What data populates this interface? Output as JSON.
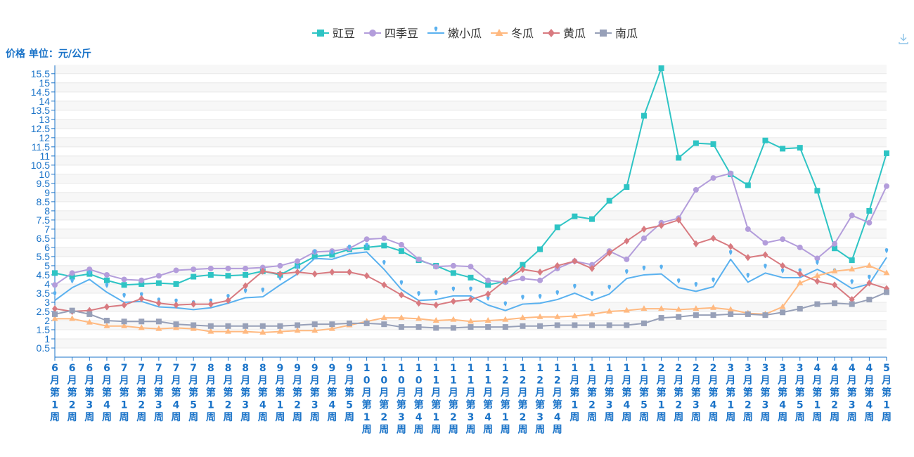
{
  "chart_data": {
    "type": "line",
    "ylabel": "价格 单位：元/公斤",
    "ylim": [
      0,
      15.8
    ],
    "yticks": [
      0.5,
      1,
      1.5,
      2,
      2.5,
      3,
      3.5,
      4,
      4.5,
      5,
      5.5,
      6,
      6.5,
      7,
      7.5,
      8,
      8.5,
      9,
      9.5,
      10,
      10.5,
      11,
      11.5,
      12,
      12.5,
      13,
      13.5,
      14,
      14.5,
      15,
      15.5
    ],
    "grid": true,
    "legend_position": "top-center",
    "categories": [
      "6月第1周",
      "6月第2周",
      "6月第3周",
      "6月第4周",
      "7月第1周",
      "7月第2周",
      "7月第3周",
      "7月第4周",
      "7月第5周",
      "8月第1周",
      "8月第2周",
      "8月第3周",
      "8月第4周",
      "9月第1周",
      "9月第2周",
      "9月第3周",
      "9月第4周",
      "9月第5周",
      "10月第1周",
      "10月第2周",
      "10月第3周",
      "10月第4周",
      "11月第1周",
      "11月第2周",
      "11月第3周",
      "11月第4周",
      "12月第1周",
      "12月第2周",
      "12月第3周",
      "12月第4周",
      "1月第1周",
      "1月第2周",
      "1月第3周",
      "1月第4周",
      "1月第5周",
      "2月第1周",
      "2月第2周",
      "2月第3周",
      "2月第4周",
      "3月第1周",
      "3月第2周",
      "3月第3周",
      "3月第4周",
      "3月第5周",
      "4月第1周",
      "4月第2周",
      "4月第3周",
      "4月第4周",
      "5月第1周"
    ],
    "series": [
      {
        "name": "豇豆",
        "color": "#2ec4c4",
        "marker": "square",
        "values": [
          4.6,
          4.4,
          4.55,
          4.2,
          3.95,
          4.0,
          4.05,
          4.0,
          4.4,
          4.5,
          4.45,
          4.5,
          4.7,
          4.5,
          5.0,
          5.5,
          5.6,
          5.9,
          6.0,
          6.1,
          5.8,
          5.3,
          5.0,
          4.6,
          4.35,
          3.95,
          4.15,
          5.05,
          5.9,
          7.1,
          7.7,
          7.55,
          8.55,
          9.3,
          13.2,
          15.8,
          10.9,
          11.7,
          11.65,
          10.0,
          9.4,
          11.85,
          11.4,
          11.45,
          9.1,
          5.95,
          5.3,
          8.0,
          11.15
        ]
      },
      {
        "name": "四季豆",
        "color": "#b39ddb",
        "marker": "circle",
        "values": [
          3.95,
          4.6,
          4.8,
          4.5,
          4.25,
          4.2,
          4.45,
          4.75,
          4.8,
          4.85,
          4.85,
          4.85,
          4.9,
          5.0,
          5.25,
          5.75,
          5.8,
          5.95,
          6.45,
          6.5,
          6.15,
          5.35,
          4.95,
          5.0,
          4.95,
          4.2,
          4.1,
          4.3,
          4.2,
          4.85,
          5.25,
          5.05,
          5.8,
          5.35,
          6.5,
          7.35,
          7.6,
          9.15,
          9.8,
          10.05,
          7.0,
          6.25,
          6.45,
          6.0,
          5.4,
          6.2,
          7.75,
          7.35,
          9.35
        ]
      },
      {
        "name": "嫩小瓜",
        "color": "#5ab1ef",
        "marker": "pin",
        "values": [
          3.1,
          3.8,
          4.25,
          3.55,
          3.0,
          3.05,
          2.75,
          2.7,
          2.6,
          2.7,
          2.95,
          3.25,
          3.3,
          3.95,
          4.55,
          5.4,
          5.35,
          5.65,
          5.75,
          4.8,
          3.7,
          3.1,
          3.15,
          3.35,
          3.35,
          2.85,
          2.55,
          2.9,
          2.95,
          3.15,
          3.5,
          3.1,
          3.45,
          4.3,
          4.5,
          4.55,
          3.8,
          3.6,
          3.85,
          5.35,
          4.1,
          4.6,
          4.35,
          4.35,
          4.8,
          4.35,
          3.75,
          4.0,
          5.45
        ]
      },
      {
        "name": "冬瓜",
        "color": "#ffb980",
        "marker": "triangle",
        "values": [
          2.1,
          2.1,
          1.9,
          1.7,
          1.7,
          1.6,
          1.55,
          1.6,
          1.55,
          1.4,
          1.4,
          1.4,
          1.35,
          1.4,
          1.45,
          1.45,
          1.55,
          1.75,
          1.95,
          2.15,
          2.15,
          2.1,
          2.0,
          2.05,
          1.95,
          2.0,
          2.05,
          2.15,
          2.2,
          2.2,
          2.25,
          2.35,
          2.5,
          2.55,
          2.65,
          2.65,
          2.6,
          2.65,
          2.7,
          2.6,
          2.4,
          2.35,
          2.75,
          4.05,
          4.45,
          4.7,
          4.8,
          5.0,
          4.6
        ]
      },
      {
        "name": "黄瓜",
        "color": "#d87a80",
        "marker": "diamond",
        "values": [
          2.65,
          2.5,
          2.55,
          2.75,
          2.85,
          3.2,
          2.95,
          2.85,
          2.9,
          2.9,
          3.1,
          3.9,
          4.7,
          4.55,
          4.65,
          4.55,
          4.65,
          4.65,
          4.45,
          3.95,
          3.4,
          2.95,
          2.85,
          3.05,
          3.15,
          3.45,
          4.2,
          4.8,
          4.65,
          5.0,
          5.25,
          4.85,
          5.7,
          6.35,
          7.0,
          7.2,
          7.5,
          6.2,
          6.5,
          6.05,
          5.45,
          5.6,
          5.0,
          4.55,
          4.15,
          3.95,
          3.15,
          4.05,
          3.75
        ]
      },
      {
        "name": "南瓜",
        "color": "#97a0b8",
        "marker": "square",
        "values": [
          2.35,
          2.55,
          2.35,
          2.0,
          1.95,
          1.95,
          1.95,
          1.8,
          1.75,
          1.7,
          1.7,
          1.7,
          1.7,
          1.7,
          1.75,
          1.8,
          1.8,
          1.85,
          1.85,
          1.8,
          1.65,
          1.65,
          1.6,
          1.6,
          1.65,
          1.65,
          1.65,
          1.7,
          1.7,
          1.75,
          1.75,
          1.75,
          1.75,
          1.75,
          1.85,
          2.15,
          2.2,
          2.3,
          2.3,
          2.35,
          2.35,
          2.3,
          2.45,
          2.65,
          2.9,
          2.95,
          2.9,
          3.15,
          3.55
        ]
      }
    ]
  }
}
